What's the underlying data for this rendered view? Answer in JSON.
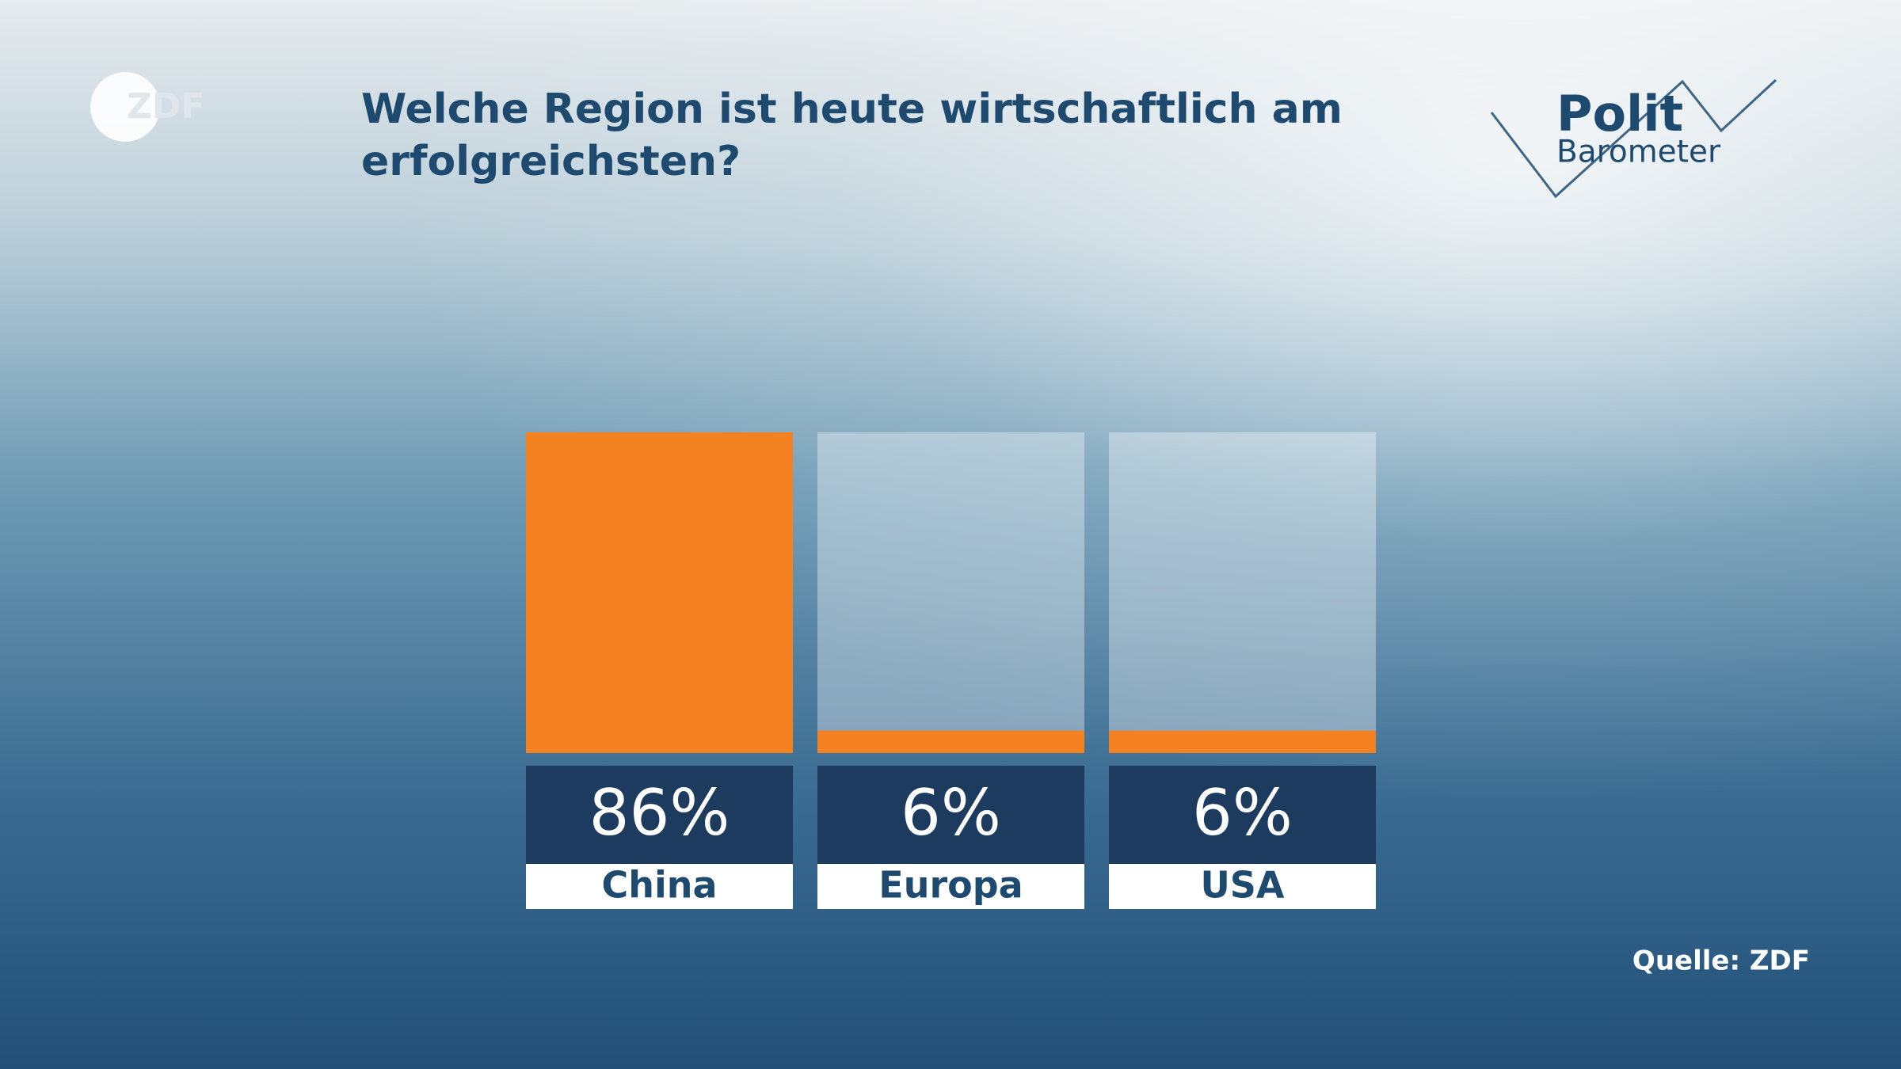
{
  "logos": {
    "zdf": "ZDF",
    "polit": "Polit",
    "barometer": "Barometer"
  },
  "chart_data": {
    "type": "bar",
    "title_lines": [
      "Welche Region ist heute wirtschaftlich am",
      "erfolgreichsten?"
    ],
    "categories": [
      "China",
      "Europa",
      "USA"
    ],
    "values": [
      86,
      6,
      6
    ],
    "value_labels": [
      "86%",
      "6%",
      "6%"
    ],
    "color": "#f58220",
    "ylim": [
      0,
      86
    ],
    "source": "Quelle: ZDF"
  }
}
